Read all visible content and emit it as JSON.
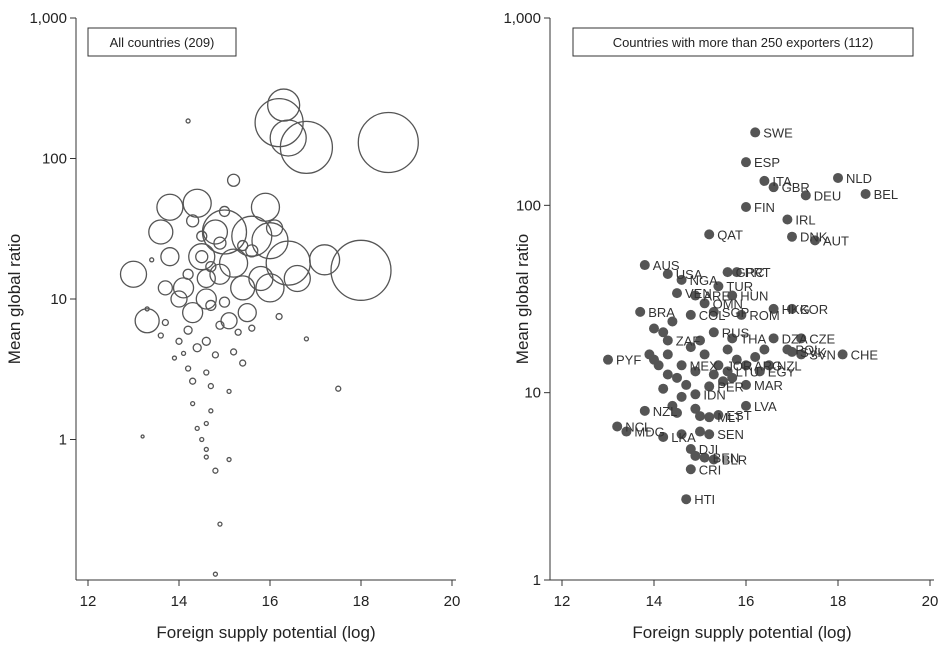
{
  "chart_data": [
    {
      "type": "scatter",
      "subtype": "bubble",
      "legend": "All countries (209)",
      "xlabel": "Foreign supply potential (log)",
      "ylabel": "Mean global ratio",
      "xlim": [
        12,
        20
      ],
      "ylim": [
        0.1,
        1000
      ],
      "yscale": "log",
      "xticks": [
        12,
        14,
        16,
        18,
        20
      ],
      "yticks": [
        1,
        10,
        100,
        1000
      ],
      "ytick_labels": [
        "1",
        "10",
        "100",
        "1,000"
      ],
      "marker_color": "#555555",
      "points": [
        {
          "x": 16.2,
          "y": 180,
          "r": 24
        },
        {
          "x": 16.8,
          "y": 120,
          "r": 26
        },
        {
          "x": 18.6,
          "y": 130,
          "r": 30
        },
        {
          "x": 16.3,
          "y": 240,
          "r": 16
        },
        {
          "x": 16.4,
          "y": 140,
          "r": 18
        },
        {
          "x": 15.0,
          "y": 30,
          "r": 22
        },
        {
          "x": 15.6,
          "y": 28,
          "r": 20
        },
        {
          "x": 16.0,
          "y": 26,
          "r": 18
        },
        {
          "x": 16.4,
          "y": 18,
          "r": 22
        },
        {
          "x": 18.0,
          "y": 16,
          "r": 30
        },
        {
          "x": 17.2,
          "y": 19,
          "r": 15
        },
        {
          "x": 13.0,
          "y": 15,
          "r": 13
        },
        {
          "x": 13.3,
          "y": 7,
          "r": 12
        },
        {
          "x": 13.6,
          "y": 30,
          "r": 12
        },
        {
          "x": 13.8,
          "y": 45,
          "r": 13
        },
        {
          "x": 14.4,
          "y": 48,
          "r": 14
        },
        {
          "x": 14.5,
          "y": 20,
          "r": 13
        },
        {
          "x": 14.8,
          "y": 30,
          "r": 12
        },
        {
          "x": 15.2,
          "y": 18,
          "r": 14
        },
        {
          "x": 15.4,
          "y": 12,
          "r": 12
        },
        {
          "x": 15.8,
          "y": 14,
          "r": 12
        },
        {
          "x": 16.0,
          "y": 12,
          "r": 14
        },
        {
          "x": 16.6,
          "y": 14,
          "r": 13
        },
        {
          "x": 15.9,
          "y": 45,
          "r": 14
        },
        {
          "x": 14.1,
          "y": 12,
          "r": 10
        },
        {
          "x": 14.3,
          "y": 8,
          "r": 10
        },
        {
          "x": 14.6,
          "y": 10,
          "r": 10
        },
        {
          "x": 13.8,
          "y": 20,
          "r": 9
        },
        {
          "x": 14.9,
          "y": 15,
          "r": 10
        },
        {
          "x": 15.5,
          "y": 8,
          "r": 9
        },
        {
          "x": 15.1,
          "y": 7,
          "r": 8
        },
        {
          "x": 14.0,
          "y": 10,
          "r": 8
        },
        {
          "x": 13.7,
          "y": 12,
          "r": 7
        },
        {
          "x": 14.6,
          "y": 14,
          "r": 9
        },
        {
          "x": 15.2,
          "y": 70,
          "r": 6
        },
        {
          "x": 14.2,
          "y": 185,
          "r": 2
        },
        {
          "x": 15.0,
          "y": 42,
          "r": 5
        },
        {
          "x": 14.3,
          "y": 36,
          "r": 6
        },
        {
          "x": 14.5,
          "y": 20,
          "r": 6
        },
        {
          "x": 14.7,
          "y": 17,
          "r": 5
        },
        {
          "x": 14.2,
          "y": 6,
          "r": 4
        },
        {
          "x": 14.4,
          "y": 4.5,
          "r": 4
        },
        {
          "x": 14.6,
          "y": 5,
          "r": 4
        },
        {
          "x": 14.0,
          "y": 5,
          "r": 3
        },
        {
          "x": 14.8,
          "y": 4,
          "r": 3
        },
        {
          "x": 15.2,
          "y": 4.2,
          "r": 3
        },
        {
          "x": 15.4,
          "y": 3.5,
          "r": 3
        },
        {
          "x": 14.2,
          "y": 3.2,
          "r": 2.5
        },
        {
          "x": 14.6,
          "y": 3.0,
          "r": 2.5
        },
        {
          "x": 14.3,
          "y": 2.6,
          "r": 3
        },
        {
          "x": 14.7,
          "y": 2.4,
          "r": 2.5
        },
        {
          "x": 15.1,
          "y": 2.2,
          "r": 2
        },
        {
          "x": 13.9,
          "y": 3.8,
          "r": 2
        },
        {
          "x": 14.1,
          "y": 4.1,
          "r": 2
        },
        {
          "x": 14.3,
          "y": 1.8,
          "r": 2
        },
        {
          "x": 14.7,
          "y": 1.6,
          "r": 2
        },
        {
          "x": 14.4,
          "y": 1.2,
          "r": 2
        },
        {
          "x": 14.6,
          "y": 1.3,
          "r": 2
        },
        {
          "x": 14.5,
          "y": 1.0,
          "r": 2
        },
        {
          "x": 14.6,
          "y": 0.85,
          "r": 2
        },
        {
          "x": 14.6,
          "y": 0.75,
          "r": 2
        },
        {
          "x": 15.1,
          "y": 0.72,
          "r": 2
        },
        {
          "x": 14.8,
          "y": 0.6,
          "r": 2.5
        },
        {
          "x": 14.9,
          "y": 0.25,
          "r": 2
        },
        {
          "x": 14.8,
          "y": 0.11,
          "r": 2
        },
        {
          "x": 13.2,
          "y": 1.05,
          "r": 1.5
        },
        {
          "x": 16.8,
          "y": 5.2,
          "r": 2
        },
        {
          "x": 17.5,
          "y": 2.3,
          "r": 2.5
        },
        {
          "x": 13.3,
          "y": 8.5,
          "r": 2
        },
        {
          "x": 13.4,
          "y": 19,
          "r": 2
        },
        {
          "x": 13.6,
          "y": 5.5,
          "r": 2.5
        },
        {
          "x": 13.7,
          "y": 6.8,
          "r": 3
        },
        {
          "x": 14.9,
          "y": 6.5,
          "r": 4
        },
        {
          "x": 15.3,
          "y": 5.8,
          "r": 3
        },
        {
          "x": 15.6,
          "y": 6.2,
          "r": 3
        },
        {
          "x": 16.2,
          "y": 7.5,
          "r": 3
        },
        {
          "x": 14.5,
          "y": 28,
          "r": 5
        },
        {
          "x": 14.9,
          "y": 25,
          "r": 6
        },
        {
          "x": 15.6,
          "y": 22,
          "r": 6
        },
        {
          "x": 15.4,
          "y": 24,
          "r": 5
        },
        {
          "x": 16.1,
          "y": 32,
          "r": 8
        },
        {
          "x": 14.2,
          "y": 15,
          "r": 5
        },
        {
          "x": 14.7,
          "y": 9,
          "r": 5
        },
        {
          "x": 15.0,
          "y": 9.5,
          "r": 5
        }
      ]
    },
    {
      "type": "scatter",
      "legend": "Countries with more than 250 exporters (112)",
      "xlabel": "Foreign supply potential (log)",
      "ylabel": "Mean global ratio",
      "xlim": [
        12,
        20
      ],
      "ylim": [
        1,
        1000
      ],
      "yscale": "log",
      "xticks": [
        12,
        14,
        16,
        18,
        20
      ],
      "yticks": [
        1,
        10,
        100,
        1000
      ],
      "ytick_labels": [
        "1",
        "10",
        "100",
        "1,000"
      ],
      "marker_color": "#555555",
      "points": [
        {
          "x": 16.2,
          "y": 245,
          "label": "SWE"
        },
        {
          "x": 16.0,
          "y": 170,
          "label": "ESP"
        },
        {
          "x": 16.4,
          "y": 135,
          "label": "ITA"
        },
        {
          "x": 16.6,
          "y": 125,
          "label": "GBR"
        },
        {
          "x": 17.3,
          "y": 113,
          "label": "DEU"
        },
        {
          "x": 18.0,
          "y": 140,
          "label": "NLD"
        },
        {
          "x": 18.6,
          "y": 115,
          "label": "BEL"
        },
        {
          "x": 16.0,
          "y": 98,
          "label": "FIN"
        },
        {
          "x": 16.9,
          "y": 84,
          "label": "IRL"
        },
        {
          "x": 17.0,
          "y": 68,
          "label": "DNK"
        },
        {
          "x": 17.5,
          "y": 65,
          "label": "AUT"
        },
        {
          "x": 15.2,
          "y": 70,
          "label": "QAT"
        },
        {
          "x": 13.8,
          "y": 48,
          "label": "AUS"
        },
        {
          "x": 14.3,
          "y": 43,
          "label": "USA"
        },
        {
          "x": 15.6,
          "y": 44,
          "label": "GRC"
        },
        {
          "x": 15.8,
          "y": 44,
          "label": "PRT"
        },
        {
          "x": 14.6,
          "y": 40,
          "label": "NGA"
        },
        {
          "x": 15.4,
          "y": 37,
          "label": "TUR"
        },
        {
          "x": 14.5,
          "y": 34,
          "label": "VEN"
        },
        {
          "x": 14.9,
          "y": 33,
          "label": "ARE"
        },
        {
          "x": 15.7,
          "y": 33,
          "label": "HUN"
        },
        {
          "x": 15.1,
          "y": 30,
          "label": "OMN"
        },
        {
          "x": 16.6,
          "y": 28,
          "label": "HKG"
        },
        {
          "x": 17.0,
          "y": 28,
          "label": "KOR"
        },
        {
          "x": 13.7,
          "y": 27,
          "label": "BRA"
        },
        {
          "x": 14.8,
          "y": 26,
          "label": "COL"
        },
        {
          "x": 15.3,
          "y": 27,
          "label": "SGP"
        },
        {
          "x": 15.9,
          "y": 26,
          "label": "ROM"
        },
        {
          "x": 15.3,
          "y": 21,
          "label": "RUS"
        },
        {
          "x": 14.3,
          "y": 19,
          "label": "ZAF"
        },
        {
          "x": 15.7,
          "y": 19.5,
          "label": "THA"
        },
        {
          "x": 16.6,
          "y": 19.5,
          "label": "DZA"
        },
        {
          "x": 17.2,
          "y": 19.5,
          "label": "CZE"
        },
        {
          "x": 16.9,
          "y": 17,
          "label": "POL"
        },
        {
          "x": 17.0,
          "y": 16.5,
          "label": "SVK"
        },
        {
          "x": 17.2,
          "y": 16,
          "label": "SVN"
        },
        {
          "x": 18.1,
          "y": 16,
          "label": "CHE"
        },
        {
          "x": 13.0,
          "y": 15,
          "label": "PYF"
        },
        {
          "x": 14.6,
          "y": 14,
          "label": "MEX"
        },
        {
          "x": 15.4,
          "y": 14,
          "label": "JOR"
        },
        {
          "x": 16.0,
          "y": 14,
          "label": "ARG"
        },
        {
          "x": 16.5,
          "y": 14,
          "label": "NZL"
        },
        {
          "x": 15.6,
          "y": 13,
          "label": "LTU"
        },
        {
          "x": 16.3,
          "y": 13,
          "label": "EGY"
        },
        {
          "x": 16.0,
          "y": 11,
          "label": "MAR"
        },
        {
          "x": 15.2,
          "y": 10.8,
          "label": "PER"
        },
        {
          "x": 14.9,
          "y": 9.8,
          "label": "IDN"
        },
        {
          "x": 16.0,
          "y": 8.5,
          "label": "LVA"
        },
        {
          "x": 15.4,
          "y": 7.6,
          "label": "EST"
        },
        {
          "x": 15.2,
          "y": 7.4,
          "label": "MLT"
        },
        {
          "x": 13.8,
          "y": 8,
          "label": "NZL"
        },
        {
          "x": 13.2,
          "y": 6.6,
          "label": "NCL"
        },
        {
          "x": 13.4,
          "y": 6.2,
          "label": "MDG"
        },
        {
          "x": 15.2,
          "y": 6.0,
          "label": "SEN"
        },
        {
          "x": 14.2,
          "y": 5.8,
          "label": "LKA"
        },
        {
          "x": 14.8,
          "y": 5.0,
          "label": "DJI"
        },
        {
          "x": 15.1,
          "y": 4.5,
          "label": "BEN"
        },
        {
          "x": 15.3,
          "y": 4.4,
          "label": "BLR"
        },
        {
          "x": 14.8,
          "y": 3.9,
          "label": "CRI"
        },
        {
          "x": 14.7,
          "y": 2.7,
          "label": "HTI"
        },
        {
          "x": 14.1,
          "y": 14,
          "label": ""
        },
        {
          "x": 14.3,
          "y": 16,
          "label": ""
        },
        {
          "x": 14.5,
          "y": 12,
          "label": ""
        },
        {
          "x": 14.7,
          "y": 11,
          "label": ""
        },
        {
          "x": 14.9,
          "y": 13,
          "label": ""
        },
        {
          "x": 15.1,
          "y": 16,
          "label": ""
        },
        {
          "x": 15.3,
          "y": 12.5,
          "label": ""
        },
        {
          "x": 15.5,
          "y": 11.5,
          "label": ""
        },
        {
          "x": 15.7,
          "y": 12,
          "label": ""
        },
        {
          "x": 14.2,
          "y": 21,
          "label": ""
        },
        {
          "x": 14.0,
          "y": 22,
          "label": ""
        },
        {
          "x": 14.4,
          "y": 24,
          "label": ""
        },
        {
          "x": 14.8,
          "y": 17.5,
          "label": ""
        },
        {
          "x": 15.0,
          "y": 19,
          "label": ""
        },
        {
          "x": 14.6,
          "y": 9.5,
          "label": ""
        },
        {
          "x": 14.4,
          "y": 8.5,
          "label": ""
        },
        {
          "x": 14.5,
          "y": 7.8,
          "label": ""
        },
        {
          "x": 14.9,
          "y": 8.2,
          "label": ""
        },
        {
          "x": 15.0,
          "y": 7.5,
          "label": ""
        },
        {
          "x": 14.2,
          "y": 10.5,
          "label": ""
        },
        {
          "x": 14.0,
          "y": 15,
          "label": ""
        },
        {
          "x": 13.9,
          "y": 16,
          "label": ""
        },
        {
          "x": 15.8,
          "y": 15,
          "label": ""
        },
        {
          "x": 16.2,
          "y": 15.5,
          "label": ""
        },
        {
          "x": 16.4,
          "y": 17,
          "label": ""
        },
        {
          "x": 15.6,
          "y": 17,
          "label": ""
        },
        {
          "x": 14.6,
          "y": 6.0,
          "label": ""
        },
        {
          "x": 14.9,
          "y": 4.6,
          "label": ""
        },
        {
          "x": 15.0,
          "y": 6.2,
          "label": ""
        },
        {
          "x": 14.3,
          "y": 12.5,
          "label": ""
        }
      ]
    }
  ]
}
